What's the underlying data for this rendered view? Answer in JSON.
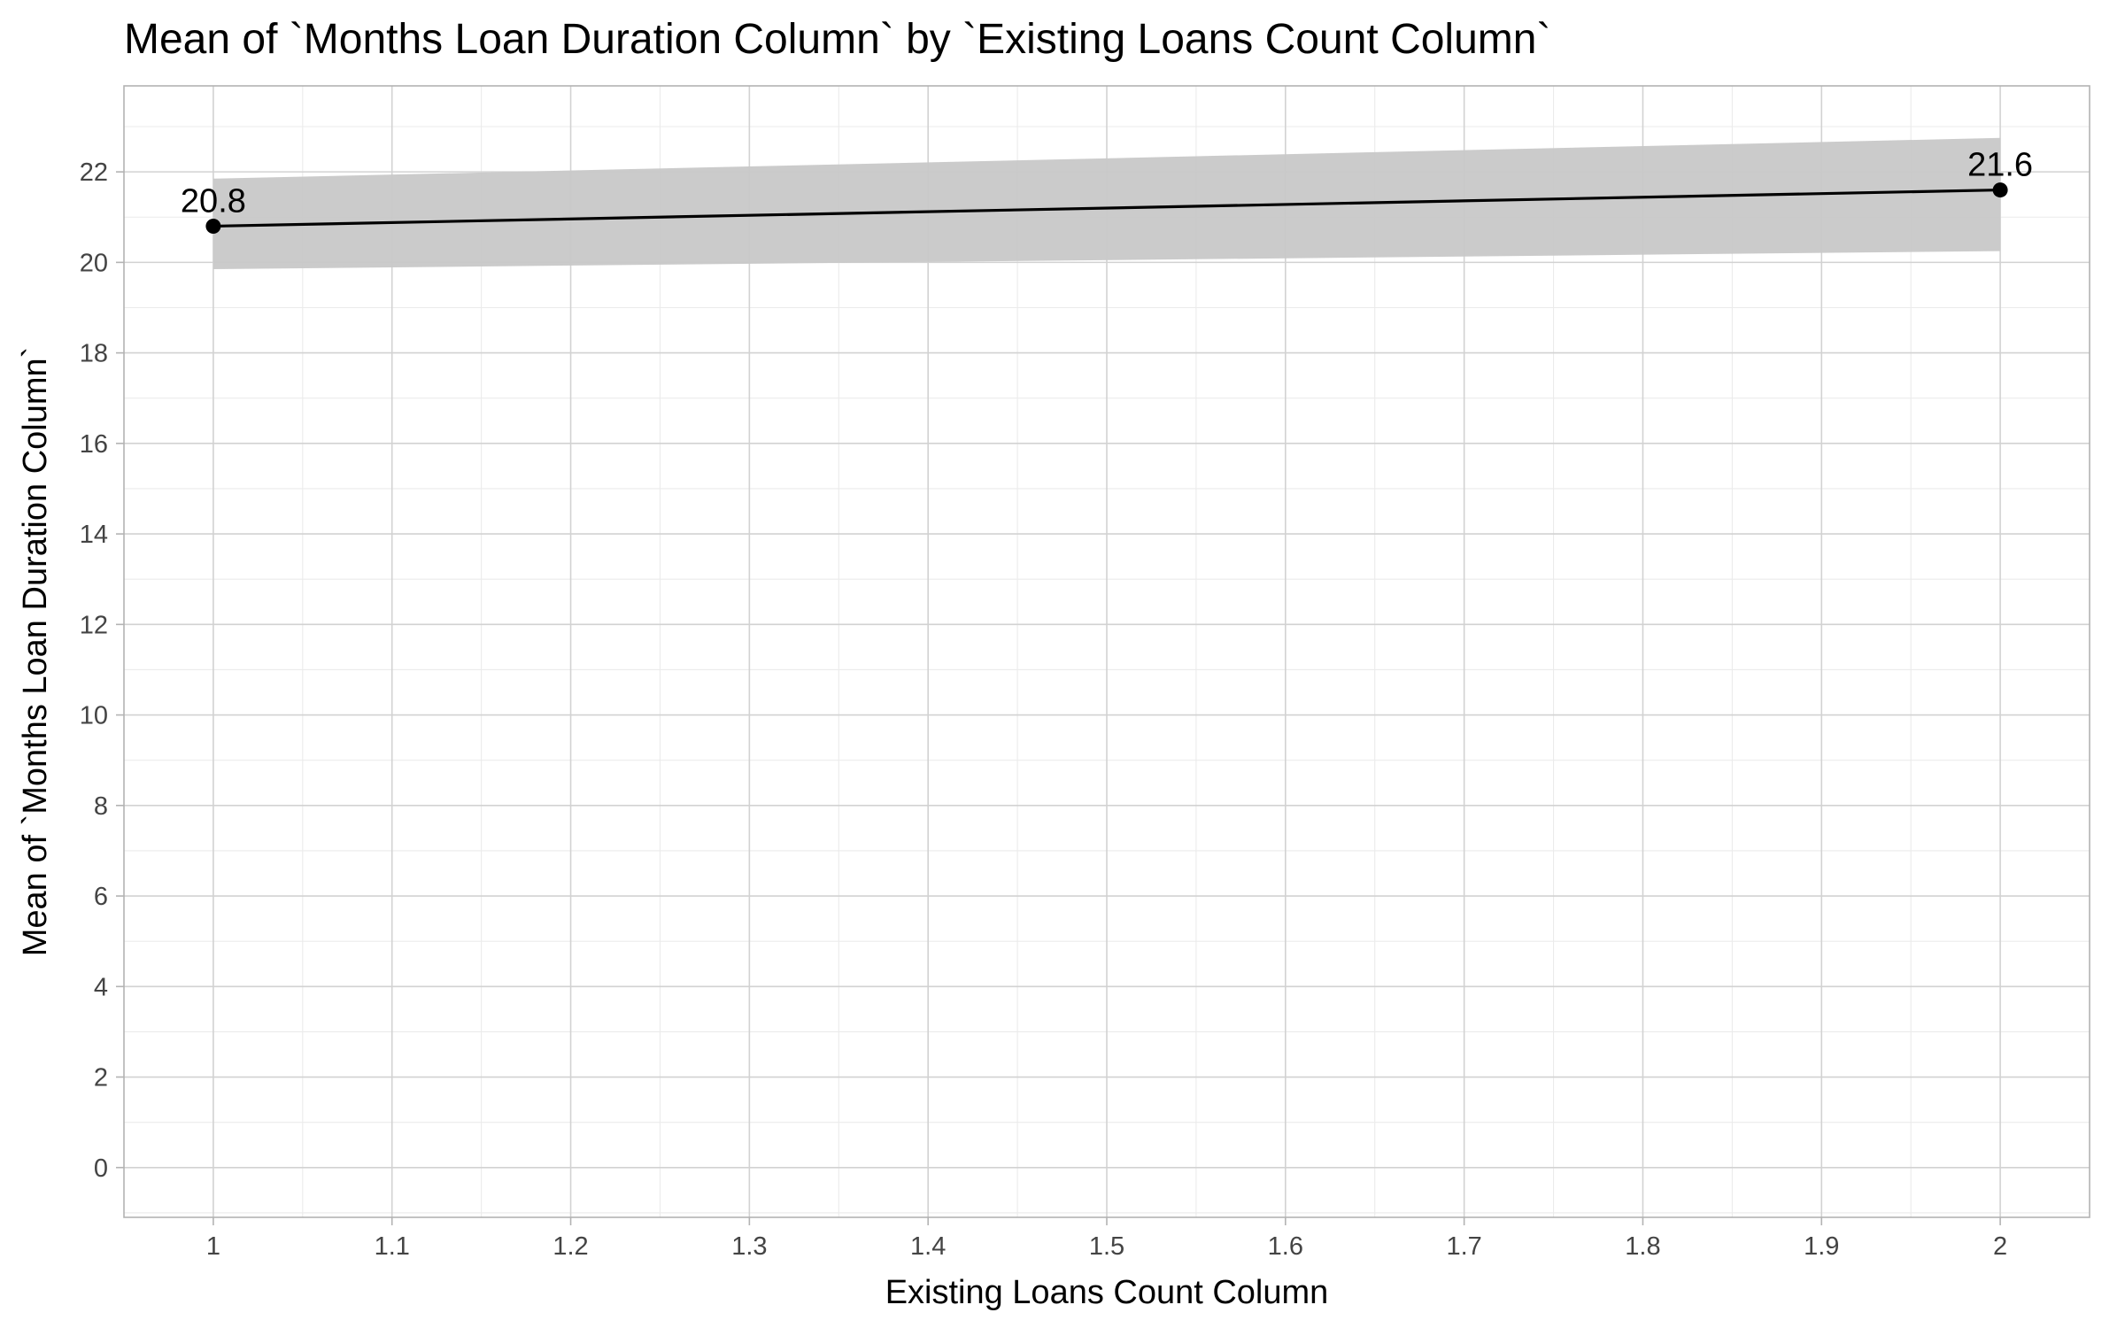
{
  "chart_data": {
    "type": "line",
    "title": "Mean of `Months Loan Duration Column` by `Existing Loans Count Column`",
    "xlabel": "Existing Loans Count Column",
    "ylabel": "Mean of `Months Loan Duration Column`",
    "xlim": [
      0.95,
      2.05
    ],
    "ylim": [
      -1.1,
      23.9
    ],
    "x_ticks": [
      1,
      1.1,
      1.2,
      1.3,
      1.4,
      1.5,
      1.6,
      1.7,
      1.8,
      1.9,
      2
    ],
    "x_tick_labels": [
      "1",
      "1.1",
      "1.2",
      "1.3",
      "1.4",
      "1.5",
      "1.6",
      "1.7",
      "1.8",
      "1.9",
      "2"
    ],
    "y_ticks": [
      0,
      2,
      4,
      6,
      8,
      10,
      12,
      14,
      16,
      18,
      20,
      22
    ],
    "y_tick_labels": [
      "0",
      "2",
      "4",
      "6",
      "8",
      "10",
      "12",
      "14",
      "16",
      "18",
      "20",
      "22"
    ],
    "grid": true,
    "series": [
      {
        "x": [
          1,
          2
        ],
        "y": [
          20.8,
          21.6
        ],
        "ci_lower": [
          19.85,
          20.25
        ],
        "ci_upper": [
          21.85,
          22.75
        ],
        "labels": [
          "20.8",
          "21.6"
        ],
        "color": "#000000",
        "band_color": "#c8c8c8"
      }
    ]
  }
}
